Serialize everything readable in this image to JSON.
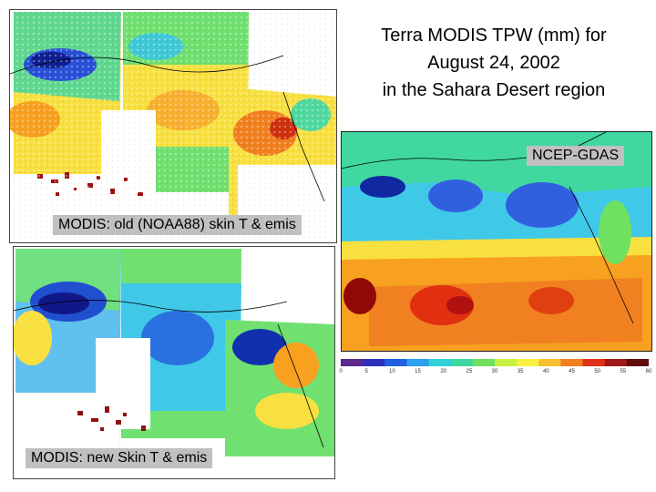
{
  "title": {
    "line1": "Terra MODIS TPW (mm) for",
    "line2": "August 24, 2002",
    "line3": "in the Sahara Desert region"
  },
  "panels": {
    "modis_old_label": "MODIS: old (NOAA88) skin T & emis",
    "modis_new_label": "MODIS: new Skin T & emis",
    "ncep_label": "NCEP-GDAS"
  },
  "colorbar": {
    "ticks": [
      "0",
      "5",
      "10",
      "15",
      "20",
      "25",
      "30",
      "35",
      "40",
      "45",
      "50",
      "55",
      "60"
    ],
    "colors": [
      "#5b2a8a",
      "#3030c0",
      "#2060e0",
      "#2aa0f0",
      "#30d0d8",
      "#40d8a0",
      "#70e060",
      "#c8f040",
      "#f8f040",
      "#f8c030",
      "#f08020",
      "#e03018",
      "#a01818",
      "#600c0c"
    ]
  },
  "colors": {
    "deep_blue": "#1020a0",
    "blue": "#3060e0",
    "light_blue": "#60b8f0",
    "cyan": "#40e0e0",
    "green": "#50e070",
    "yellow": "#f8e840",
    "orange": "#f8a020",
    "red": "#e03010",
    "dark_red": "#800808"
  }
}
